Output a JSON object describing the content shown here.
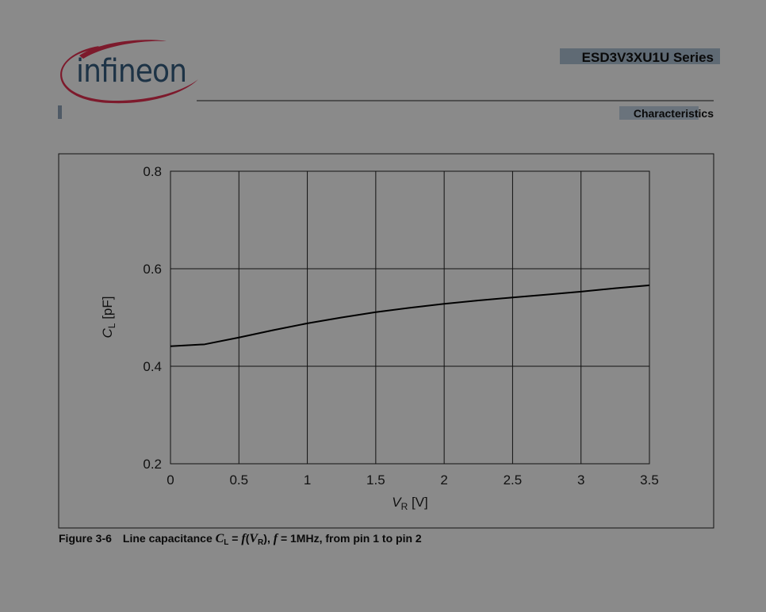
{
  "header": {
    "logo": "infineon",
    "title": "ESD3V3XU1U Series",
    "section": "Characteristics"
  },
  "chart_data": {
    "type": "line",
    "y_label": [
      "C",
      "L",
      " [pF]"
    ],
    "x_label": [
      "V",
      "R",
      " [V]"
    ],
    "x": [
      0,
      0.25,
      0.5,
      0.75,
      1,
      1.25,
      1.5,
      1.75,
      2,
      2.25,
      2.5,
      2.75,
      3,
      3.25,
      3.5
    ],
    "values": [
      0.441,
      0.445,
      0.459,
      0.474,
      0.488,
      0.5,
      0.511,
      0.52,
      0.528,
      0.535,
      0.541,
      0.547,
      0.553,
      0.56,
      0.566
    ],
    "color": "#000000",
    "xlim": [
      0,
      3.5
    ],
    "xticks": [
      0,
      0.5,
      1,
      1.5,
      2,
      2.5,
      3,
      3.5
    ],
    "ylim": [
      0.2,
      0.8
    ],
    "yticks": [
      0.2,
      0.4,
      0.6,
      0.8
    ],
    "grid": true
  },
  "caption": {
    "number": "Figure 3-6",
    "parts": [
      "Line capacitance ",
      "C",
      "L",
      " = ",
      "f",
      "(",
      "V",
      "R",
      "), ",
      "f",
      " = 1MHz, from pin 1 to pin 2"
    ]
  }
}
